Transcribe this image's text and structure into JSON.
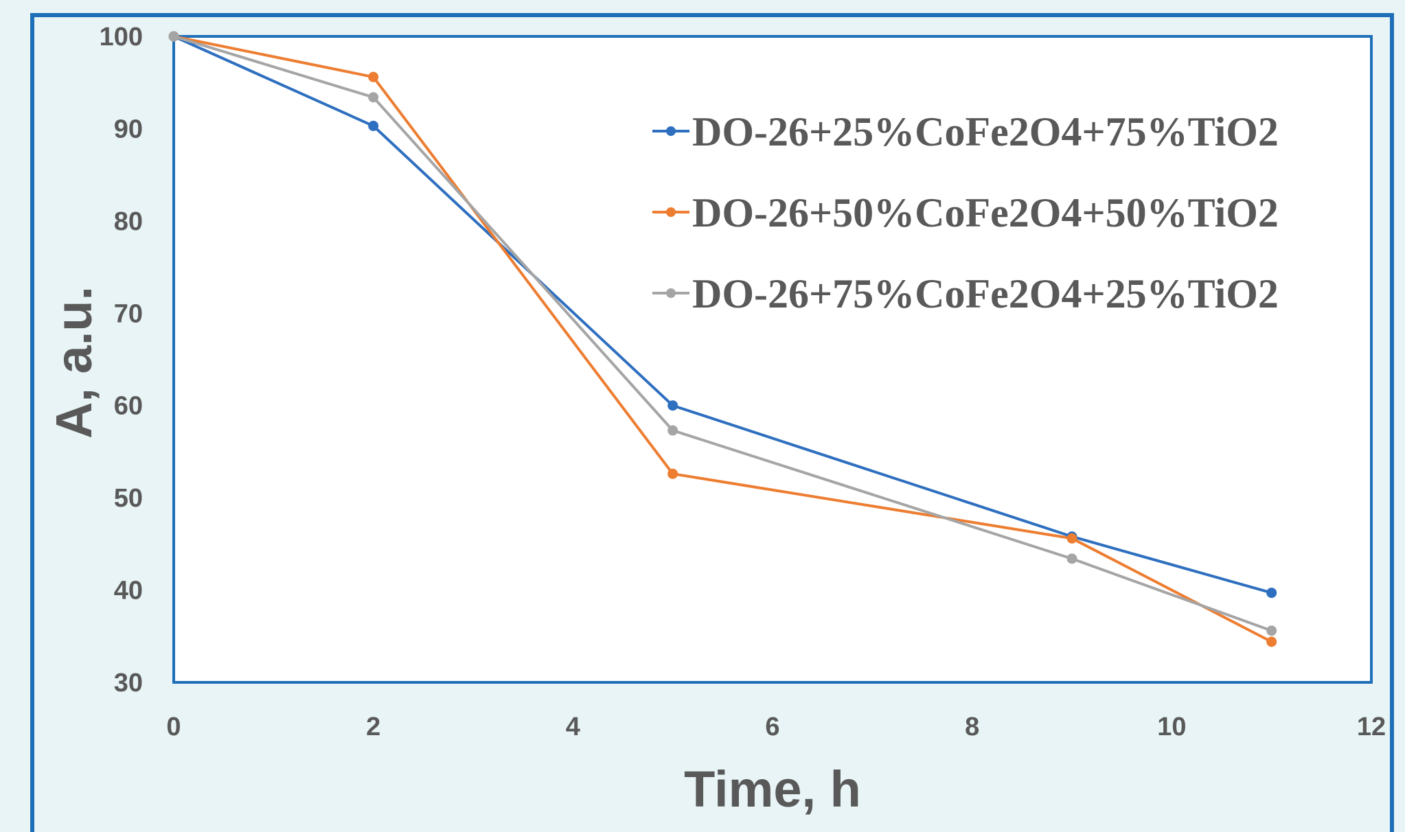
{
  "colors": {
    "background": "#e8f4f6",
    "frame": "#1f6fb8",
    "plot_area": "#ffffff",
    "text": "#595959"
  },
  "chart_data": {
    "type": "line",
    "xlabel": "Time, h",
    "ylabel": "A, a.u.",
    "xlim": [
      0,
      12
    ],
    "ylim": [
      30,
      100
    ],
    "xticks": [
      0,
      2,
      4,
      6,
      8,
      10,
      12
    ],
    "yticks": [
      30,
      40,
      50,
      60,
      70,
      80,
      90,
      100
    ],
    "grid": false,
    "legend_position": "top-right",
    "x": [
      0,
      2,
      5,
      9,
      11
    ],
    "series": [
      {
        "name": "DO-26+25%CoFe2O4+75%TiO2",
        "color": "#2e6fbf",
        "values": [
          100,
          90.3,
          60,
          45.8,
          39.7
        ]
      },
      {
        "name": "DO-26+50%CoFe2O4+50%TiO2",
        "color": "#ed7d31",
        "values": [
          100,
          95.6,
          52.6,
          45.6,
          34.4
        ]
      },
      {
        "name": "DO-26+75%CoFe2O4+25%TiO2",
        "color": "#a5a5a5",
        "values": [
          100,
          93.4,
          57.3,
          43.4,
          35.6
        ]
      }
    ]
  }
}
